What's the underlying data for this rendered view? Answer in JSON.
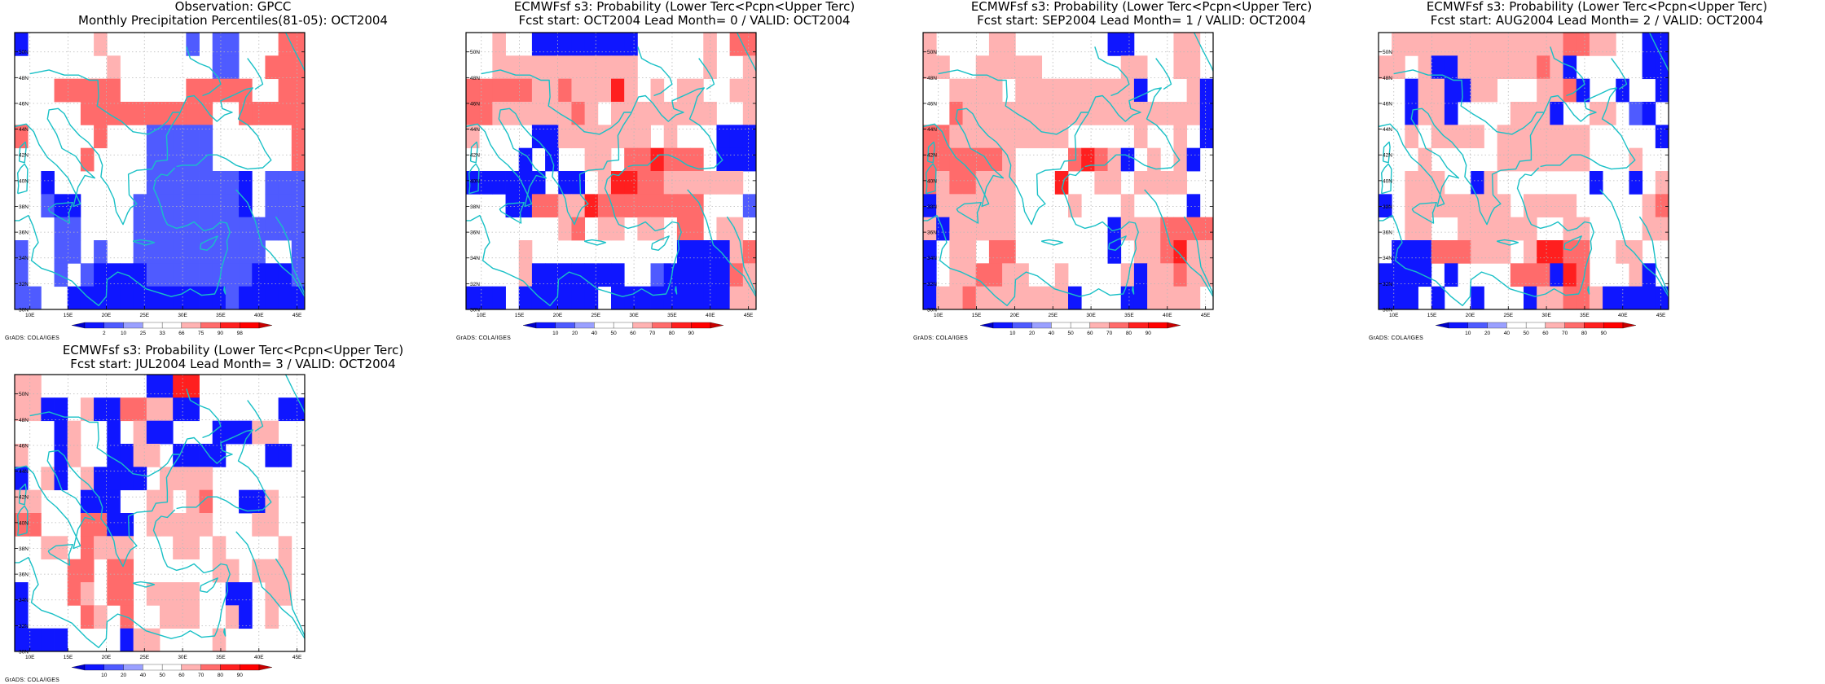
{
  "panels": [
    {
      "title1": "Observation: GPCC",
      "title2": "Monthly Precipitation Percentiles(81-05): OCT2004",
      "colorbar": {
        "labels": [
          "2",
          "10",
          "25",
          "33",
          "66",
          "75",
          "90",
          "98"
        ]
      },
      "grid": [
        "B.....p......b.bb...rr",
        ".......p.......bb..rrr",
        "...rrrrr.....rrrrr..rr",
        ".....rrrrrrrrrr..rrrrr",
        "r.....r...bbbbb......r",
        ".....r....bbbbb......r",
        "..B.......bbbbbbbB.bbb",
        "..bBB....bbbbbbbbB.bbb",
        "...bb....bbbbbbbbbbbbb",
        "b..bb.b..bbbbbbbbbb..b",
        "b..b.bBBBBbbbbbbbbBBBb",
        "bb..BBBBBBBBBBBBbBBBBB"
      ]
    },
    {
      "title1": "ECMWFsf s3: Probability (Lower Terc<Pcpn<Upper Terc)",
      "title2": "Fcst start: OCT2004   Lead Month= 0 / VALID: OCT2004",
      "colorbar": {
        "labels": [
          "10",
          "20",
          "40",
          "50",
          "60",
          "70",
          "80",
          "90"
        ]
      },
      "grid": [
        "..p..BBBBBBBB.....p.rr",
        "..ppppppppppp.....p..p",
        "rrrrrpprpppRp.p.pp..pp",
        "rrpppppprp.pppppppp..p",
        "p....BBppppppp.p...BBB",
        "....B.B..pp.rrRrrr.BBB",
        "BBBBBB.BB.pRRrrpppppp.",
        "...BBrrppRrrrrrrrr...b",
        ".......pr.pp.pp.rr.pp.",
        "....p...........BBBBpr",
        "....pBBBBBBB..bBBBBBrp",
        "BBB.BBBBBB.BBBBBBBBBpp"
      ]
    },
    {
      "title1": "ECMWFsf s3: Probability (Lower Terc<Pcpn<Upper Terc)",
      "title2": "Fcst start: SEP2004   Lead Month= 1 / VALID: OCT2004",
      "colorbar": {
        "labels": [
          "10",
          "20",
          "40",
          "50",
          "60",
          "70",
          "80",
          "90"
        ]
      },
      "grid": [
        "p....pp.......BB...pp.",
        "pp..ppppp......pp..pp.",
        "..pppp.pppppppppB...pB",
        "..rppppppppppppppppppB",
        "rrppppppppp.....p..p.B",
        "rrrrrrp....rRrpB.p.pB.",
        "rprrppp...R..pp.pppp..",
        "Bpppppp....p...p....B.",
        "pBppppp.......Bppprrrr",
        "B.pp.rr.......B.pprRpp",
        "B.pprrpp..p....pBpprpp",
        "BpprpppppppB...BBpppp."
      ]
    },
    {
      "title1": "ECMWFsf s3: Probability (Lower Terc<Pcpn<Upper Terc)",
      "title2": "Fcst start: AUG2004   Lead Month= 2 / VALID: OCT2004",
      "colorbar": {
        "labels": [
          "10",
          "20",
          "40",
          "50",
          "60",
          "70",
          "80",
          "90"
        ]
      },
      "grid": [
        ".ppppppppppppprrpp..BB",
        "pp.pBBpppppprpB.....BB",
        "..BppBBpp...pprB..B..B",
        "..BppB....pppB..pp.bB.",
        "..p.pppp.ppppppp.....B",
        "...p.....ppppppp...p..",
        "..ppp..Bp.......B..B.p",
        "B.pppppppp.pppp.....pr",
        "..pp..pppppp..pp....pp",
        ".BBBrrrppp.pRRrr..pp..",
        "BBBB.B....rrrBRr...pB.",
        "BBB.B..B...BpprrpBBBBB"
      ]
    },
    {
      "title1": "ECMWFsf s3: Probability (Lower Terc<Pcpn<Upper Terc)",
      "title2": "Fcst start: JUL2004   Lead Month= 3 / VALID: OCT2004",
      "colorbar": {
        "labels": [
          "10",
          "20",
          "40",
          "50",
          "60",
          "70",
          "80",
          "90"
        ]
      },
      "grid": [
        "pp........BBRR........",
        "ppBB.pBBrrppBB......BB",
        "...Bp..B.pBB...BBBpp..",
        "p..Bp..BBpp.BBBB...BB.",
        "B.pB.pBBBB.pppp.......",
        "pp...BBB..pp.pr..BBp..",
        "rr...rrBB.ppppp...pp..",
        "..pp.rppp...pp.p....p.",
        "....rr.rr......pp.ppp.",
        "B...rp.rr.pppp..BB.pp.",
        "B....rp.r..ppp..pB.p..",
        "BBBB....Bpp....p......"
      ]
    }
  ],
  "lon_labels": [
    "10E",
    "15E",
    "20E",
    "25E",
    "30E",
    "35E",
    "40E",
    "45E"
  ],
  "lat_labels": [
    "30N",
    "32N",
    "34N",
    "36N",
    "38N",
    "40N",
    "42N",
    "44N",
    "46N",
    "48N",
    "50N"
  ],
  "credit": "GrADS: COLA/IGES",
  "colors": {
    "dark_blue": "#0f16ff",
    "med_blue": "#4f5bff",
    "light_blue": "#9aa0ff",
    "light_pink": "#ffb2b2",
    "med_red": "#ff6b6b",
    "dark_red": "#ff1f1f",
    "coast": "#19c0c6"
  }
}
